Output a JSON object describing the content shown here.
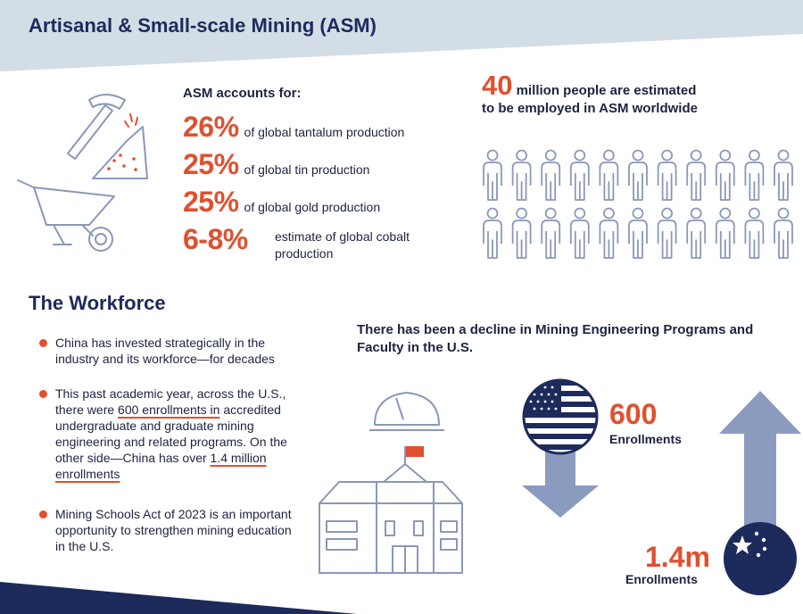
{
  "header": {
    "title": "Artisanal & Small-scale Mining (ASM)"
  },
  "asm": {
    "intro": "ASM accounts for:",
    "stats": [
      {
        "value": "26%",
        "text": "of global tantalum production"
      },
      {
        "value": "25%",
        "text": "of global tin production"
      },
      {
        "value": "25%",
        "text": "of global gold production"
      },
      {
        "value": "6-8%",
        "text": "estimate of global cobalt production"
      }
    ]
  },
  "population": {
    "number": "40",
    "text_line1": "million people are estimated",
    "text_line2": "to be employed in ASM worldwide",
    "icon": "person-icon",
    "rows": 2,
    "per_row": 11
  },
  "workforce": {
    "title": "The Workforce",
    "bullets": [
      {
        "text": "China has invested strategically in the industry and its workforce—for decades"
      },
      {
        "pre": "This past academic year, across the U.S., there were ",
        "hl1": "600 enrollments in",
        "mid": " accredited undergraduate and graduate mining engineering and related programs. On the other side—China has over ",
        "hl2": "1.4 million enrollments"
      },
      {
        "text": "Mining Schools Act of 2023 is an important opportunity to strengthen mining education in the U.S."
      }
    ]
  },
  "decline": {
    "heading": "There has been a decline in Mining Engineering Programs and Faculty in the U.S.",
    "us": {
      "value": "600",
      "label": "Enrollments",
      "flag": "us-flag-icon",
      "arrow": "down-arrow-icon"
    },
    "china": {
      "value": "1.4m",
      "label": "Enrollments",
      "flag": "china-flag-icon",
      "arrow": "up-arrow-icon"
    }
  },
  "colors": {
    "accent": "#e0502f",
    "navy": "#1d2a5c",
    "steel": "#8a9bbf",
    "header_band": "#d3dde6",
    "icon_stroke": "#8a98b8"
  }
}
